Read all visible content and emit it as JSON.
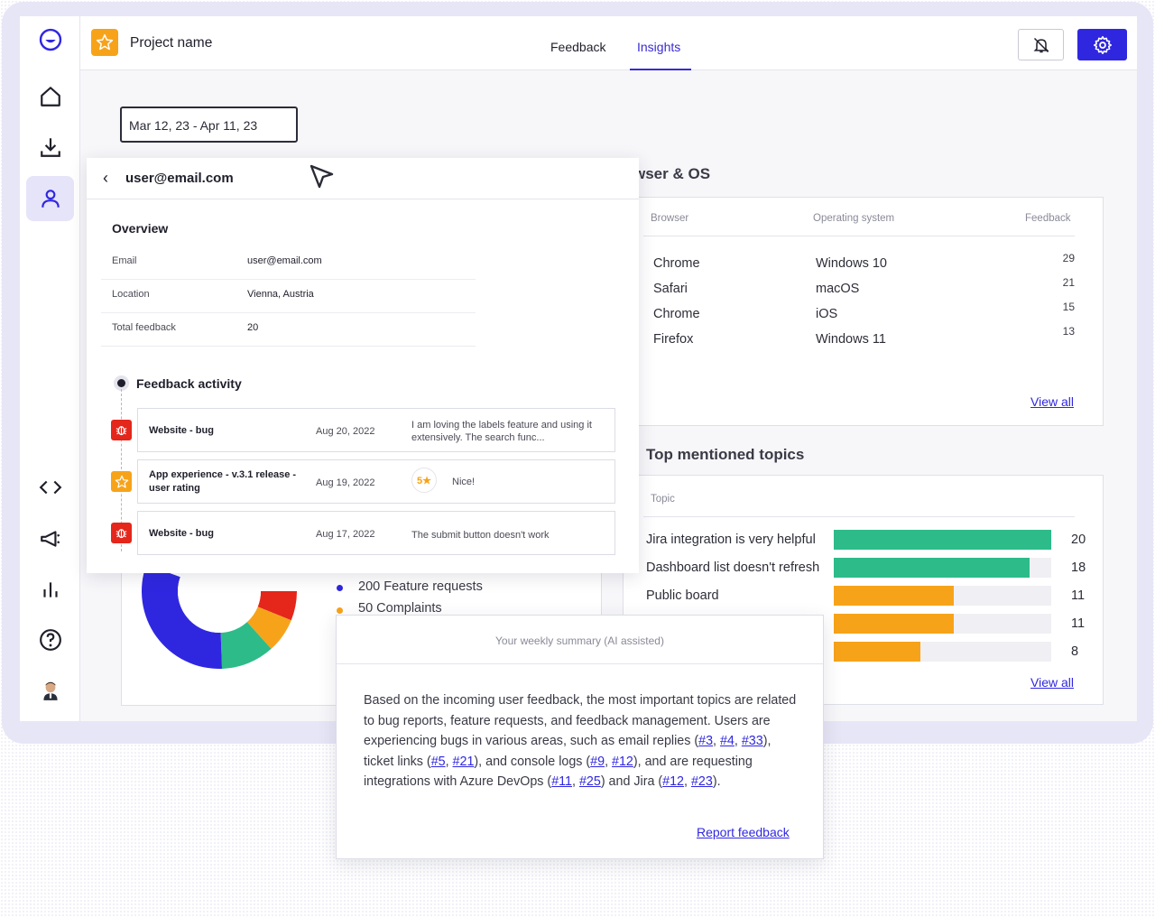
{
  "header": {
    "project_name": "Project name",
    "tabs": [
      {
        "label": "Feedback",
        "active": false
      },
      {
        "label": "Insights",
        "active": true
      }
    ]
  },
  "filters": {
    "date_range": "Mar 12, 23 - Apr 11, 23"
  },
  "colors": {
    "accent": "#2f27e0",
    "star": "#f7a31a",
    "bug": "#e4261b",
    "teal": "#2dbb8a"
  },
  "browser_os": {
    "title": "Browser & OS",
    "title_visible": "wser & OS",
    "columns": [
      "Browser",
      "Operating system",
      "Feedback"
    ],
    "rows": [
      {
        "browser": "Chrome",
        "os": "Windows 10",
        "count": "29"
      },
      {
        "browser": "Safari",
        "os": "macOS",
        "count": "21"
      },
      {
        "browser": "Chrome",
        "os": "iOS",
        "count": "15"
      },
      {
        "browser": "Firefox",
        "os": "Windows 11",
        "count": "13"
      }
    ],
    "view_all": "View all"
  },
  "topics": {
    "title": "Top mentioned topics",
    "column": "Topic",
    "rows": [
      {
        "label": "Jira integration is very helpful",
        "value": 20,
        "max": 20,
        "color": "#2dbb8a"
      },
      {
        "label": "Dashboard list doesn't refresh",
        "value": 18,
        "max": 20,
        "color": "#2dbb8a"
      },
      {
        "label": "Public board",
        "value": 11,
        "max": 20,
        "color": "#f7a31a"
      },
      {
        "label": "",
        "value": 11,
        "max": 20,
        "color": "#f7a31a"
      },
      {
        "label": "",
        "value": 8,
        "max": 20,
        "color": "#f7a31a"
      }
    ],
    "view_all": "View all"
  },
  "breakdown": {
    "legend": [
      {
        "label": "200 Feature requests",
        "color": "#2f27e0"
      },
      {
        "label": "50 Complaints",
        "color": "#f7a31a"
      }
    ]
  },
  "user_panel": {
    "email_title": "user@email.com",
    "overview_title": "Overview",
    "overview": [
      {
        "key": "Email",
        "value": "user@email.com"
      },
      {
        "key": "Location",
        "value": "Vienna, Austria"
      },
      {
        "key": "Total feedback",
        "value": "20"
      }
    ],
    "activity_title": "Feedback activity",
    "activity": [
      {
        "type": "bug",
        "title": "Website - bug",
        "date": "Aug 20, 2022",
        "text": "I am loving the labels feature and using it extensively. The search func..."
      },
      {
        "type": "rating",
        "title": "App experience - v.3.1 release - user rating",
        "date": "Aug 19, 2022",
        "rating": "5★",
        "text": "Nice!"
      },
      {
        "type": "bug",
        "title": "Website - bug",
        "date": "Aug 17, 2022",
        "text": "The submit button doesn't work"
      }
    ]
  },
  "summary": {
    "header": "Your weekly summary (AI assisted)",
    "t1": "Based on the incoming user feedback, the most important topics are related to bug reports, feature requests, and feedback management. Users are experiencing bugs in various areas, such as email replies (",
    "l1": "#3",
    "s1": ", ",
    "l2": "#4",
    "s2": ", ",
    "l3": "#33",
    "t2": "), ticket links (",
    "l4": "#5",
    "s3": ", ",
    "l5": "#21",
    "t3": "), and console logs (",
    "l6": "#9",
    "s4": ", ",
    "l7": "#12",
    "t4": "), and are requesting integrations with Azure DevOps (",
    "l8": "#11",
    "s5": ", ",
    "l9": "#25",
    "t5": ") and Jira (",
    "l10": "#12",
    "s6": ", ",
    "l11": "#23",
    "t6": ").",
    "report_link": "Report feedback"
  }
}
